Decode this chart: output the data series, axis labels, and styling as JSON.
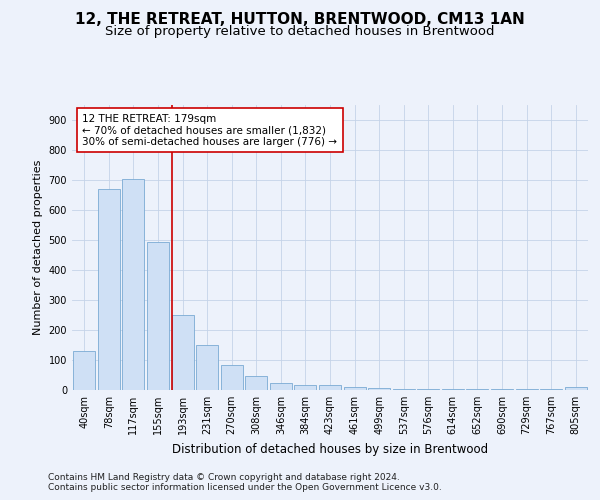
{
  "title": "12, THE RETREAT, HUTTON, BRENTWOOD, CM13 1AN",
  "subtitle": "Size of property relative to detached houses in Brentwood",
  "xlabel": "Distribution of detached houses by size in Brentwood",
  "ylabel": "Number of detached properties",
  "bar_labels": [
    "40sqm",
    "78sqm",
    "117sqm",
    "155sqm",
    "193sqm",
    "231sqm",
    "270sqm",
    "308sqm",
    "346sqm",
    "384sqm",
    "423sqm",
    "461sqm",
    "499sqm",
    "537sqm",
    "576sqm",
    "614sqm",
    "652sqm",
    "690sqm",
    "729sqm",
    "767sqm",
    "805sqm"
  ],
  "bar_values": [
    130,
    670,
    705,
    495,
    250,
    150,
    85,
    48,
    22,
    17,
    17,
    10,
    8,
    5,
    3,
    2,
    2,
    2,
    2,
    2,
    10
  ],
  "bar_color": "#cfe0f5",
  "bar_edge_color": "#7aaad4",
  "vline_x_index": 3.55,
  "vline_color": "#cc0000",
  "annotation_text": "12 THE RETREAT: 179sqm\n← 70% of detached houses are smaller (1,832)\n30% of semi-detached houses are larger (776) →",
  "annotation_box_color": "#ffffff",
  "annotation_box_edge_color": "#cc0000",
  "ylim": [
    0,
    950
  ],
  "yticks": [
    0,
    100,
    200,
    300,
    400,
    500,
    600,
    700,
    800,
    900
  ],
  "footer_line1": "Contains HM Land Registry data © Crown copyright and database right 2024.",
  "footer_line2": "Contains public sector information licensed under the Open Government Licence v3.0.",
  "background_color": "#edf2fb",
  "grid_color": "#c5d3e8",
  "title_fontsize": 11,
  "subtitle_fontsize": 9.5,
  "xlabel_fontsize": 8.5,
  "ylabel_fontsize": 8,
  "tick_fontsize": 7,
  "annotation_fontsize": 7.5,
  "footer_fontsize": 6.5
}
